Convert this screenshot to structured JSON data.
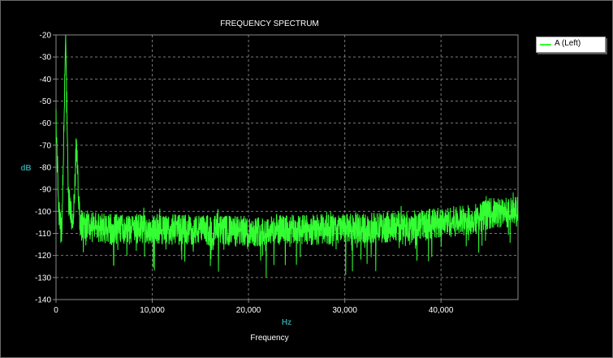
{
  "chart_data": {
    "type": "line",
    "title": "FREQUENCY SPECTRUM",
    "xlabel": "Frequency",
    "x_unit": "Hz",
    "y_unit": "dB",
    "xlim": [
      0,
      48000
    ],
    "ylim": [
      -140,
      -20
    ],
    "x_ticks": [
      "0",
      "10,000",
      "20,000",
      "30,000",
      "40,000"
    ],
    "y_ticks": [
      "-20",
      "-30",
      "-40",
      "-50",
      "-60",
      "-70",
      "-80",
      "-90",
      "-100",
      "-110",
      "-120",
      "-130",
      "-140"
    ],
    "grid": true,
    "legend_position": "top-right",
    "series": [
      {
        "name": "A (Left)",
        "color": "#33ff33",
        "trend": [
          {
            "x": 0,
            "y": -60
          },
          {
            "x": 300,
            "y": -100
          },
          {
            "x": 600,
            "y": -112
          },
          {
            "x": 1000,
            "y": -20
          },
          {
            "x": 1300,
            "y": -95
          },
          {
            "x": 1800,
            "y": -105
          },
          {
            "x": 2100,
            "y": -70
          },
          {
            "x": 2500,
            "y": -106
          },
          {
            "x": 5000,
            "y": -108
          },
          {
            "x": 10000,
            "y": -108
          },
          {
            "x": 20000,
            "y": -109
          },
          {
            "x": 30000,
            "y": -108
          },
          {
            "x": 36000,
            "y": -107
          },
          {
            "x": 40000,
            "y": -105
          },
          {
            "x": 43000,
            "y": -104
          },
          {
            "x": 45000,
            "y": -101
          },
          {
            "x": 48000,
            "y": -100
          }
        ]
      }
    ]
  },
  "legend": {
    "entry": "A (Left)"
  }
}
